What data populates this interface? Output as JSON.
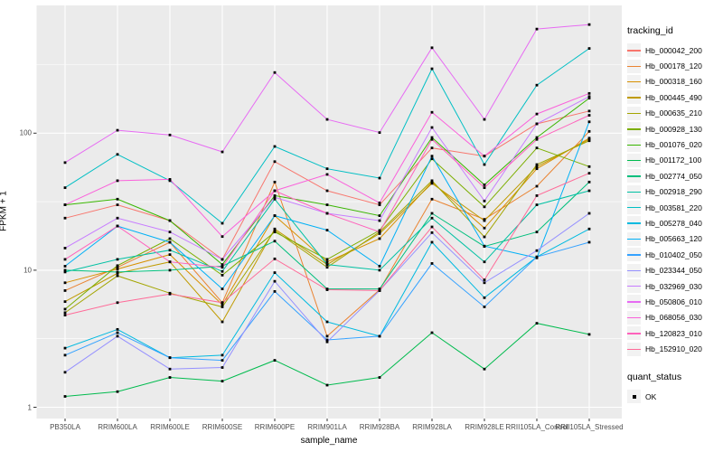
{
  "chart_data": {
    "type": "line",
    "title": "",
    "xlabel": "sample_name",
    "ylabel": "FPKM + 1",
    "y_scale": "log10",
    "ylim": [
      1,
      700
    ],
    "grid": "on",
    "y_tick_labels": [
      "1",
      "10",
      "100"
    ],
    "y_major_breaks": [
      1,
      10,
      100
    ],
    "y_minor_breaks": [
      3.1623,
      31.623,
      316.23
    ],
    "x_categories": [
      "PB350LA",
      "RRIM600LA",
      "RRIM600LE",
      "RRIM600SE",
      "RRIM600PE",
      "RRIM901LA",
      "RRIM928BA",
      "RRIM928LA",
      "RRIM928LE",
      "RRII105LA_Control",
      "RRII105LA_Stressed"
    ],
    "point_shape": "filled-square",
    "point_color": "#000000",
    "series": [
      {
        "name": "Hb_000042_200",
        "color": "#F8766D",
        "values": [
          24,
          30,
          23,
          12,
          62,
          38,
          30,
          78,
          68,
          117,
          145
        ]
      },
      {
        "name": "Hb_000178_120",
        "color": "#EA8331",
        "values": [
          7.1,
          10.5,
          16,
          5.8,
          44,
          3.3,
          7.2,
          33,
          23.5,
          41,
          103
        ]
      },
      {
        "name": "Hb_000318_160",
        "color": "#D89000",
        "values": [
          8.1,
          10.2,
          13,
          5.6,
          25,
          11.5,
          17,
          44,
          20.3,
          55,
          92
        ]
      },
      {
        "name": "Hb_000445_490",
        "color": "#C09B00",
        "values": [
          5.9,
          9.5,
          11.5,
          4.2,
          20,
          11,
          18.5,
          43,
          23,
          57,
          90
        ]
      },
      {
        "name": "Hb_000635_210",
        "color": "#A3A500",
        "values": [
          4.9,
          9.1,
          6.8,
          5.4,
          19.5,
          10.5,
          19,
          45,
          17.5,
          59,
          88
        ]
      },
      {
        "name": "Hb_000928_130",
        "color": "#7CAE00",
        "values": [
          5.2,
          10.8,
          17,
          9.2,
          19,
          12,
          19.5,
          65,
          29,
          78,
          57
        ]
      },
      {
        "name": "Hb_001076_020",
        "color": "#39B600",
        "values": [
          30,
          33,
          23,
          11,
          35,
          30,
          25,
          93,
          42,
          93,
          180
        ]
      },
      {
        "name": "Hb_001172_100",
        "color": "#00BB4E",
        "values": [
          1.2,
          1.3,
          1.65,
          1.55,
          2.2,
          1.45,
          1.65,
          3.5,
          1.9,
          4.1,
          3.4
        ]
      },
      {
        "name": "Hb_002774_050",
        "color": "#00BF7D",
        "values": [
          10,
          9.7,
          10,
          10.7,
          16.3,
          7.3,
          7.3,
          26,
          14.9,
          19,
          44
        ]
      },
      {
        "name": "Hb_002918_290",
        "color": "#00C1A3",
        "values": [
          9.7,
          12,
          14,
          9.8,
          33,
          11,
          10,
          24,
          11.5,
          30,
          38
        ]
      },
      {
        "name": "Hb_003581_220",
        "color": "#00BFC4",
        "values": [
          40,
          70,
          45,
          22,
          80,
          55,
          47,
          295,
          59,
          224,
          415
        ]
      },
      {
        "name": "Hb_005278_040",
        "color": "#00BAE0",
        "values": [
          2.7,
          3.7,
          2.3,
          2.4,
          9.6,
          4.2,
          3.3,
          16,
          6.3,
          12.5,
          20
        ]
      },
      {
        "name": "Hb_005663_120",
        "color": "#00B0F6",
        "values": [
          10.7,
          21,
          16,
          7.3,
          25,
          19.6,
          10.7,
          68,
          15,
          12.3,
          121
        ]
      },
      {
        "name": "Hb_010402_050",
        "color": "#35A2FF",
        "values": [
          2.4,
          3.5,
          2.3,
          2.2,
          7.0,
          3.1,
          3.3,
          11.2,
          5.4,
          12.5,
          16
        ]
      },
      {
        "name": "Hb_023344_050",
        "color": "#9590FF",
        "values": [
          1.8,
          3.3,
          1.9,
          1.95,
          8.3,
          3.0,
          7.1,
          18.8,
          8.1,
          13.9,
          26
        ]
      },
      {
        "name": "Hb_032969_030",
        "color": "#C77CFF",
        "values": [
          14.5,
          24,
          19,
          12,
          34,
          26,
          23,
          110,
          32,
          117,
          185
        ]
      },
      {
        "name": "Hb_050806_010",
        "color": "#E76BF3",
        "values": [
          61,
          105,
          97,
          73,
          277,
          126,
          101,
          420,
          126,
          575,
          620
        ]
      },
      {
        "name": "Hb_068056_030",
        "color": "#FA62DB",
        "values": [
          30,
          45,
          46,
          17.6,
          38,
          50,
          31,
          142,
          68,
          138,
          195
        ]
      },
      {
        "name": "Hb_120823_010",
        "color": "#FF62BC",
        "values": [
          12,
          21,
          11.5,
          10.5,
          38,
          26,
          19,
          90,
          40,
          90,
          135
        ]
      },
      {
        "name": "Hb_152910_020",
        "color": "#FF6A98",
        "values": [
          4.7,
          5.8,
          6.7,
          5.8,
          12.1,
          7.2,
          7.1,
          20.7,
          8.5,
          35,
          51
        ]
      }
    ],
    "legend": {
      "position": "right",
      "tracking_title": "tracking_id",
      "quant_title": "quant_status",
      "quant_items": [
        {
          "label": "OK",
          "shape": "filled-square",
          "color": "#000000"
        }
      ]
    },
    "style": {
      "panel_fill": "#EBEBEB",
      "grid_color": "#FFFFFF",
      "tick_color": "#333333",
      "tick_text_color": "#4D4D4D",
      "legend_key_fill": "#F2F2F2",
      "background": "#FFFFFF"
    }
  }
}
